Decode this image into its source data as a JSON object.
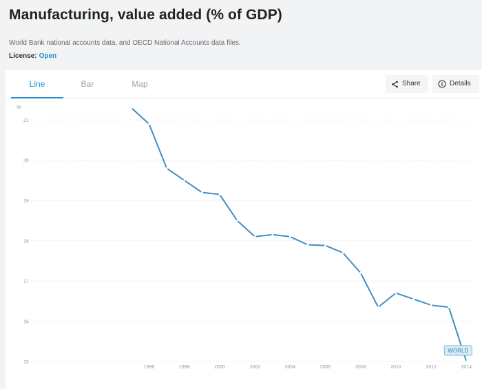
{
  "page": {
    "title": "Manufacturing, value added (% of GDP)",
    "source": "World Bank national accounts data, and OECD National Accounts data files.",
    "license_label": "License:",
    "license_value": "Open"
  },
  "tabs": [
    {
      "label": "Line",
      "active": true
    },
    {
      "label": "Bar",
      "active": false
    },
    {
      "label": "Map",
      "active": false
    }
  ],
  "actions": {
    "share_label": "Share",
    "details_label": "Details"
  },
  "colors": {
    "accent": "#1d8fcf",
    "line": "#3d8fc4",
    "badge_bg": "#d8ecf8",
    "badge_border": "#7fb4d6",
    "badge_text": "#3b7fb0"
  },
  "icons": [
    "share-icon",
    "info-icon"
  ],
  "chart_data": {
    "type": "line",
    "ylabel": "%",
    "xlabel": "",
    "ylim": [
      15,
      21.5
    ],
    "xlim": [
      1989.3,
      2014.3
    ],
    "yticks": [
      15,
      16,
      17,
      18,
      19,
      20,
      21
    ],
    "xticks": [
      1996,
      1998,
      2000,
      2002,
      2004,
      2006,
      2008,
      2010,
      2012,
      2014
    ],
    "grid": true,
    "series": [
      {
        "name": "WORLD",
        "x": [
          1995,
          1996,
          1997,
          1998,
          1999,
          2000,
          2001,
          2002,
          2003,
          2004,
          2005,
          2006,
          2007,
          2008,
          2009,
          2010,
          2011,
          2012,
          2013,
          2014
        ],
        "values": [
          21.3,
          20.9,
          19.8,
          19.5,
          19.2,
          19.15,
          18.5,
          18.1,
          18.15,
          18.1,
          17.9,
          17.88,
          17.7,
          17.2,
          16.35,
          16.7,
          16.55,
          16.4,
          16.35,
          15.0
        ]
      }
    ]
  }
}
